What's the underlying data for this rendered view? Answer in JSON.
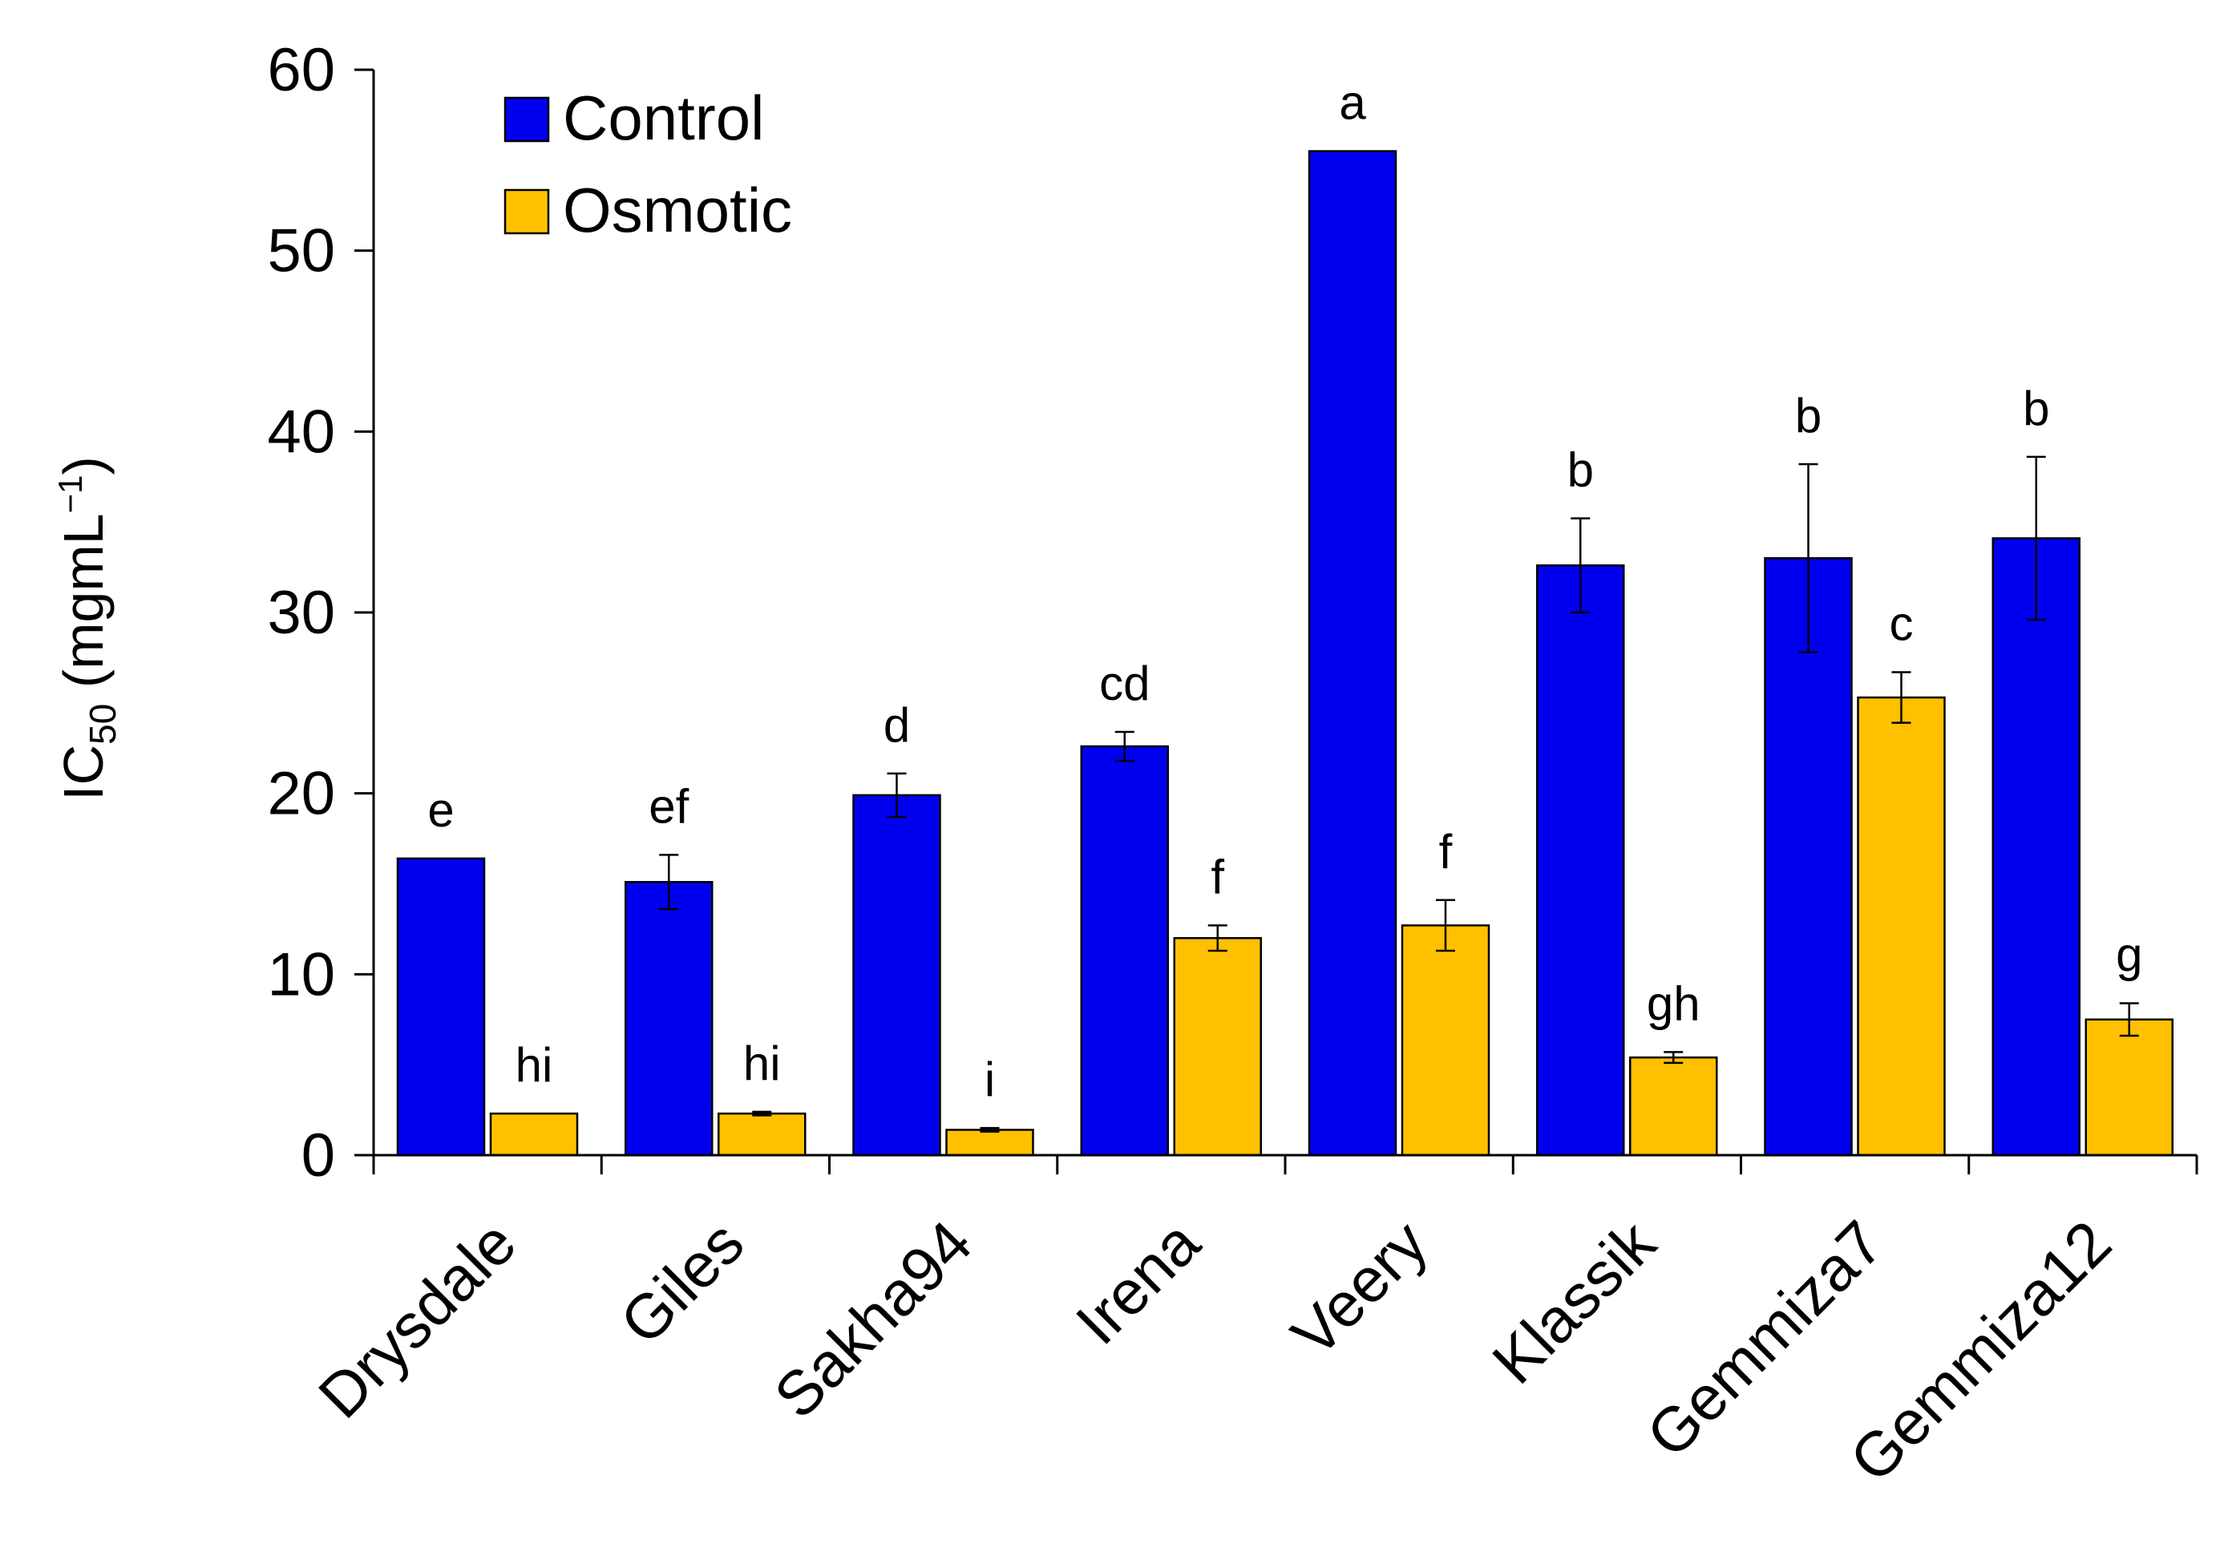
{
  "chart_data": {
    "type": "bar",
    "title": "",
    "xlabel": "",
    "ylabel": {
      "base": "IC",
      "subscript": "50",
      "unit_prefix": " (mgmL",
      "superscript": "−1",
      "unit_suffix": ")"
    },
    "ylim": [
      0,
      60
    ],
    "yticks": [
      0,
      10,
      20,
      30,
      40,
      50,
      60
    ],
    "categories": [
      "Drysdale",
      "Giles",
      "Sakha94",
      "Irena",
      "Veery",
      "Klassik",
      "Gemmiza7",
      "Gemmiza12"
    ],
    "series": [
      {
        "name": "Control",
        "color": "#0000ee",
        "values": [
          16.4,
          15.1,
          19.9,
          22.6,
          55.5,
          32.6,
          33.0,
          34.1
        ],
        "errors": [
          0,
          1.5,
          1.2,
          0.8,
          0,
          2.6,
          5.2,
          4.5
        ],
        "letters": [
          "e",
          "ef",
          "d",
          "cd",
          "a",
          "b",
          "b",
          "b"
        ]
      },
      {
        "name": "Osmotic",
        "color": "#ffc000",
        "values": [
          2.3,
          2.3,
          1.4,
          12.0,
          12.7,
          5.4,
          25.3,
          7.5
        ],
        "errors": [
          0,
          0.1,
          0.1,
          0.7,
          1.4,
          0.3,
          1.4,
          0.9
        ],
        "letters": [
          "hi",
          "hi",
          "i",
          "f",
          "f",
          "gh",
          "c",
          "g"
        ]
      }
    ],
    "legend_position": "top-left",
    "grid": false
  }
}
